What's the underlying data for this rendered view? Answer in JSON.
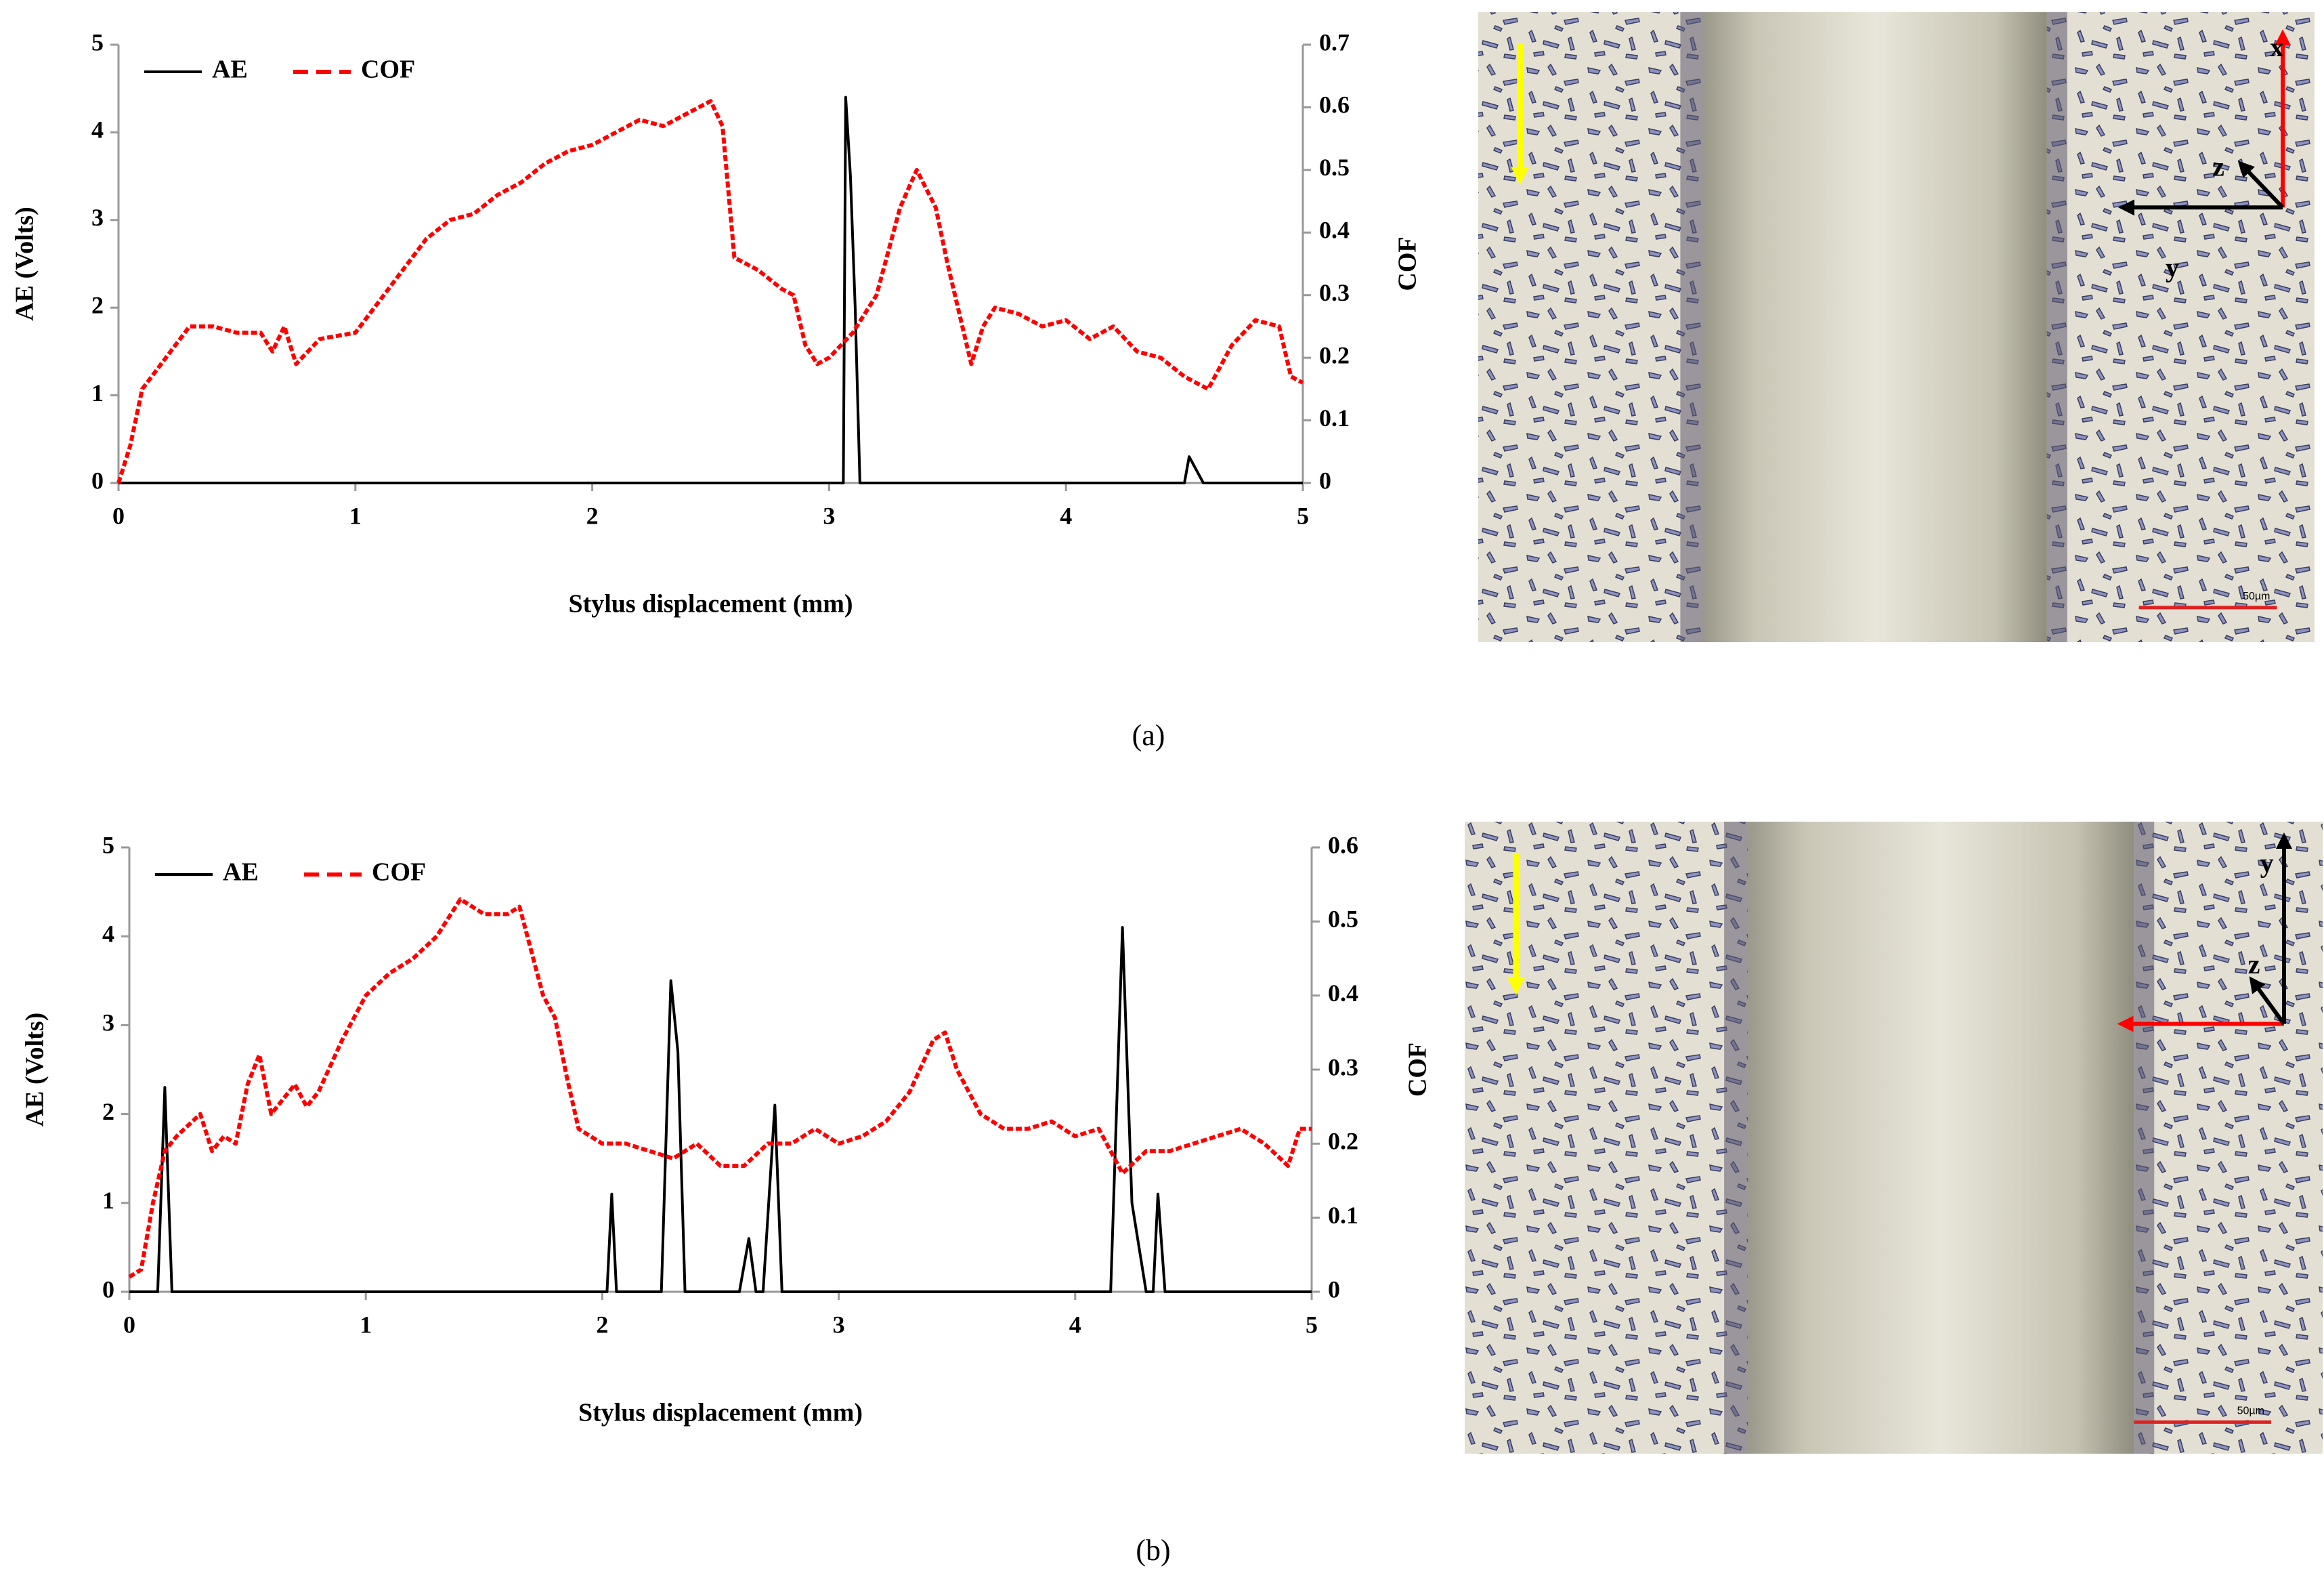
{
  "chart_data": [
    {
      "type": "line",
      "caption": "(a)",
      "xlabel": "Stylus displacement (mm)",
      "ylabel": "AE (Volts)",
      "y2label": "COF",
      "xlim": [
        0,
        5
      ],
      "xticks": [
        0,
        1,
        2,
        3,
        4,
        5
      ],
      "ylim": [
        0,
        5
      ],
      "yticks": [
        0,
        1,
        2,
        3,
        4,
        5
      ],
      "y2lim": [
        0,
        0.7
      ],
      "y2ticks": [
        0,
        0.1,
        0.2,
        0.3,
        0.4,
        0.5,
        0.6,
        0.7
      ],
      "legend": "upper left",
      "series": [
        {
          "name": "AE",
          "color": "#000000",
          "linestyle": "solid",
          "x": [
            0,
            1,
            2,
            3,
            3.06,
            3.07,
            3.09,
            3.11,
            3.13,
            4,
            4.5,
            4.52,
            4.56,
            4.58,
            5
          ],
          "values": [
            0,
            0,
            0,
            0,
            0,
            4.4,
            3.5,
            2,
            0,
            0,
            0,
            0.3,
            0.1,
            0,
            0
          ]
        },
        {
          "name": "COF",
          "color": "#ff0000",
          "linestyle": "dashed",
          "axis": "y2",
          "x": [
            0,
            0.05,
            0.1,
            0.2,
            0.3,
            0.4,
            0.5,
            0.6,
            0.65,
            0.7,
            0.75,
            0.85,
            1.0,
            1.1,
            1.2,
            1.3,
            1.4,
            1.5,
            1.6,
            1.7,
            1.8,
            1.9,
            2.0,
            2.1,
            2.2,
            2.3,
            2.4,
            2.5,
            2.55,
            2.6,
            2.7,
            2.8,
            2.85,
            2.9,
            2.95,
            3.0,
            3.1,
            3.2,
            3.3,
            3.37,
            3.45,
            3.5,
            3.55,
            3.6,
            3.65,
            3.7,
            3.8,
            3.9,
            4.0,
            4.1,
            4.2,
            4.3,
            4.4,
            4.5,
            4.6,
            4.7,
            4.8,
            4.9,
            4.95,
            5.0
          ],
          "values": [
            0,
            0.06,
            0.15,
            0.2,
            0.25,
            0.25,
            0.24,
            0.24,
            0.21,
            0.25,
            0.19,
            0.23,
            0.24,
            0.29,
            0.34,
            0.39,
            0.42,
            0.43,
            0.46,
            0.48,
            0.51,
            0.53,
            0.54,
            0.56,
            0.58,
            0.57,
            0.59,
            0.61,
            0.57,
            0.36,
            0.34,
            0.31,
            0.3,
            0.22,
            0.19,
            0.2,
            0.24,
            0.3,
            0.44,
            0.5,
            0.44,
            0.35,
            0.27,
            0.19,
            0.25,
            0.28,
            0.27,
            0.25,
            0.26,
            0.23,
            0.25,
            0.21,
            0.2,
            0.17,
            0.15,
            0.22,
            0.26,
            0.25,
            0.17,
            0.16
          ]
        }
      ],
      "micrograph": {
        "labels": [
          "x",
          "z",
          "y"
        ],
        "scale_label": "50µm"
      }
    },
    {
      "type": "line",
      "caption": "(b)",
      "xlabel": "Stylus displacement (mm)",
      "ylabel": "AE (Volts)",
      "y2label": "COF",
      "xlim": [
        0,
        5
      ],
      "xticks": [
        0,
        1,
        2,
        3,
        4,
        5
      ],
      "ylim": [
        0,
        5
      ],
      "yticks": [
        0,
        1,
        2,
        3,
        4,
        5
      ],
      "y2lim": [
        0,
        0.6
      ],
      "y2ticks": [
        0,
        0.1,
        0.2,
        0.3,
        0.4,
        0.5,
        0.6
      ],
      "legend": "upper left",
      "series": [
        {
          "name": "AE",
          "color": "#000000",
          "linestyle": "solid",
          "x": [
            0,
            0.12,
            0.15,
            0.18,
            1,
            2.02,
            2.04,
            2.06,
            2.25,
            2.29,
            2.32,
            2.35,
            2.58,
            2.62,
            2.65,
            2.68,
            2.73,
            2.76,
            4.15,
            4.2,
            4.24,
            4.3,
            4.33,
            4.35,
            4.38,
            5
          ],
          "values": [
            0,
            0,
            2.3,
            0,
            0,
            0,
            1.1,
            0,
            0,
            3.5,
            2.7,
            0,
            0,
            0.6,
            0,
            0,
            2.1,
            0,
            0,
            4.1,
            1,
            0,
            0,
            1.1,
            0,
            0
          ]
        },
        {
          "name": "COF",
          "color": "#ff0000",
          "linestyle": "dashed",
          "axis": "y2",
          "x": [
            0,
            0.05,
            0.1,
            0.15,
            0.2,
            0.3,
            0.35,
            0.4,
            0.45,
            0.5,
            0.55,
            0.6,
            0.7,
            0.75,
            0.8,
            0.9,
            1.0,
            1.1,
            1.2,
            1.3,
            1.4,
            1.5,
            1.6,
            1.65,
            1.7,
            1.75,
            1.8,
            1.85,
            1.9,
            2.0,
            2.1,
            2.2,
            2.3,
            2.4,
            2.5,
            2.6,
            2.7,
            2.8,
            2.9,
            3.0,
            3.1,
            3.2,
            3.3,
            3.4,
            3.45,
            3.5,
            3.6,
            3.7,
            3.8,
            3.9,
            4.0,
            4.1,
            4.2,
            4.3,
            4.4,
            4.5,
            4.6,
            4.7,
            4.8,
            4.9,
            4.95,
            5.0
          ],
          "values": [
            0.02,
            0.03,
            0.12,
            0.19,
            0.21,
            0.24,
            0.19,
            0.21,
            0.2,
            0.28,
            0.32,
            0.24,
            0.28,
            0.25,
            0.27,
            0.34,
            0.4,
            0.43,
            0.45,
            0.48,
            0.53,
            0.51,
            0.51,
            0.52,
            0.46,
            0.4,
            0.37,
            0.29,
            0.22,
            0.2,
            0.2,
            0.19,
            0.18,
            0.2,
            0.17,
            0.17,
            0.2,
            0.2,
            0.22,
            0.2,
            0.21,
            0.23,
            0.27,
            0.34,
            0.35,
            0.3,
            0.24,
            0.22,
            0.22,
            0.23,
            0.21,
            0.22,
            0.16,
            0.19,
            0.19,
            0.2,
            0.21,
            0.22,
            0.2,
            0.17,
            0.22,
            0.22
          ]
        }
      ],
      "micrograph": {
        "labels": [
          "y",
          "z"
        ],
        "scale_label": "50µm"
      }
    }
  ]
}
